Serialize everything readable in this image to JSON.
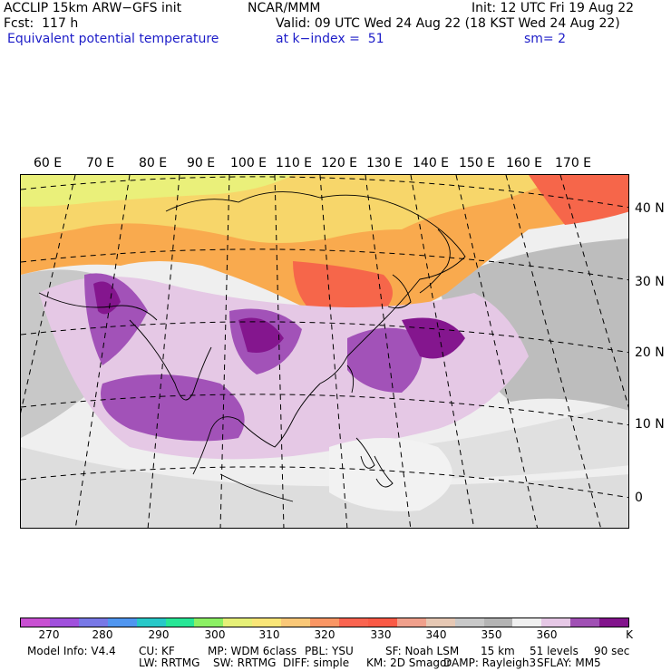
{
  "header": {
    "model": "ACCLIP 15km ARW−GFS init",
    "org": "NCAR/MMM",
    "init": "Init: 12 UTC Fri 19 Aug 22",
    "fcst": "Fcst:  117 h",
    "valid": "Valid: 09 UTC Wed 24 Aug 22 (18 KST Wed 24 Aug 22)",
    "field": "Equivalent potential temperature",
    "level": "at k−index =  51",
    "smooth": "sm= 2"
  },
  "map": {
    "lon_labels": [
      "60 E",
      "70 E",
      "80 E",
      "90 E",
      "100 E",
      "110 E",
      "120 E",
      "130 E",
      "140 E",
      "150 E",
      "160 E",
      "170 E"
    ],
    "lat_labels": [
      "40 N",
      "30 N",
      "20 N",
      "10 N",
      "0"
    ]
  },
  "colorbar": {
    "labels": [
      "270",
      "280",
      "290",
      "300",
      "310",
      "320",
      "330",
      "340",
      "350",
      "360",
      "K"
    ],
    "colors": [
      "#c850d2",
      "#a050dc",
      "#7878e6",
      "#5096f0",
      "#28c8c8",
      "#28e696",
      "#8cf064",
      "#e6f078",
      "#fae678",
      "#fac878",
      "#fa9664",
      "#fa6450",
      "#fa5a46",
      "#f0a08c",
      "#e6c8b4",
      "#c8c8c8",
      "#b4b4b4",
      "#f0f0f0",
      "#e6c8e6",
      "#a050b4",
      "#82148c"
    ]
  },
  "footer": {
    "line1": [
      "Model Info: V4.4",
      "CU: KF",
      "MP: WDM 6class",
      "PBL: YSU",
      "SF: Noah LSM",
      "15 km",
      "51 levels",
      "90 sec"
    ],
    "line2": [
      "LW: RRTMG",
      "SW: RRTMG",
      "DIFF: simple",
      "KM: 2D Smagor",
      "DAMP: Rayleigh3",
      "SFLAY: MM5"
    ]
  }
}
